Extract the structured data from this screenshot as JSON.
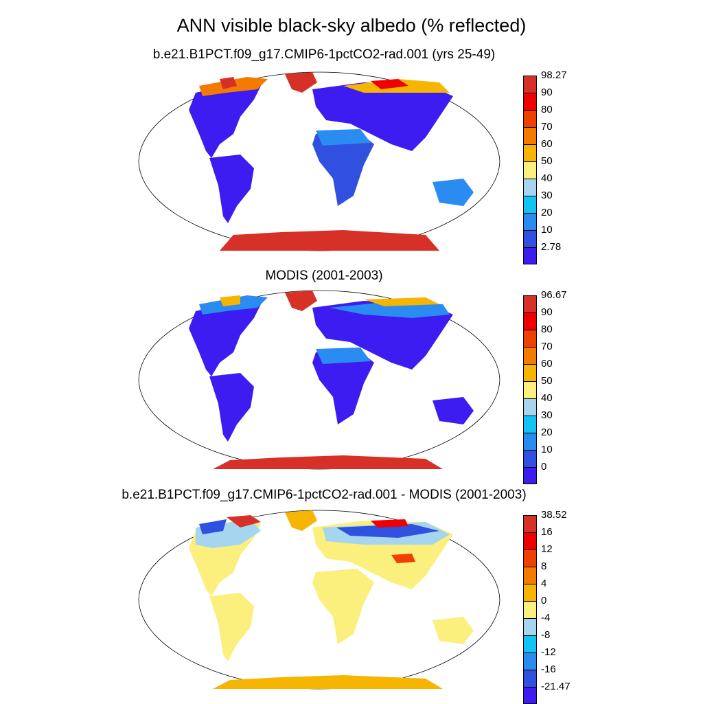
{
  "title": "ANN visible black-sky albedo (% reflected)",
  "panels": [
    {
      "title": "b.e21.B1PCT.f09_g17.CMIP6-1pctCO2-rad.001 (yrs 25-49)",
      "colorbar": {
        "labels": [
          "98.27",
          "90",
          "80",
          "70",
          "60",
          "50",
          "40",
          "30",
          "20",
          "10",
          "2.78"
        ],
        "colors": [
          "#d73027",
          "#f00000",
          "#f04000",
          "#f57a00",
          "#f5b500",
          "#fbef7e",
          "#a6d5f0",
          "#12c4f5",
          "#2a8bf0",
          "#3050e0",
          "#3c1cf0"
        ]
      }
    },
    {
      "title": "MODIS (2001-2003)",
      "colorbar": {
        "labels": [
          "96.67",
          "90",
          "80",
          "70",
          "60",
          "50",
          "40",
          "30",
          "20",
          "10",
          "0"
        ],
        "colors": [
          "#d73027",
          "#f00000",
          "#f04000",
          "#f57a00",
          "#f5b500",
          "#fbef7e",
          "#a6d5f0",
          "#12c4f5",
          "#2a8bf0",
          "#3050e0",
          "#3c1cf0"
        ]
      }
    },
    {
      "title": "b.e21.B1PCT.f09_g17.CMIP6-1pctCO2-rad.001 - MODIS (2001-2003)",
      "colorbar": {
        "labels": [
          "38.52",
          "16",
          "12",
          "8",
          "4",
          "0",
          "-4",
          "-8",
          "-12",
          "-16",
          "-21.47"
        ],
        "colors": [
          "#d73027",
          "#f00000",
          "#f04000",
          "#f57a00",
          "#f5b500",
          "#fbef7e",
          "#a6d5f0",
          "#12c4f5",
          "#2a8bf0",
          "#3050e0",
          "#3c1cf0"
        ]
      }
    }
  ]
}
